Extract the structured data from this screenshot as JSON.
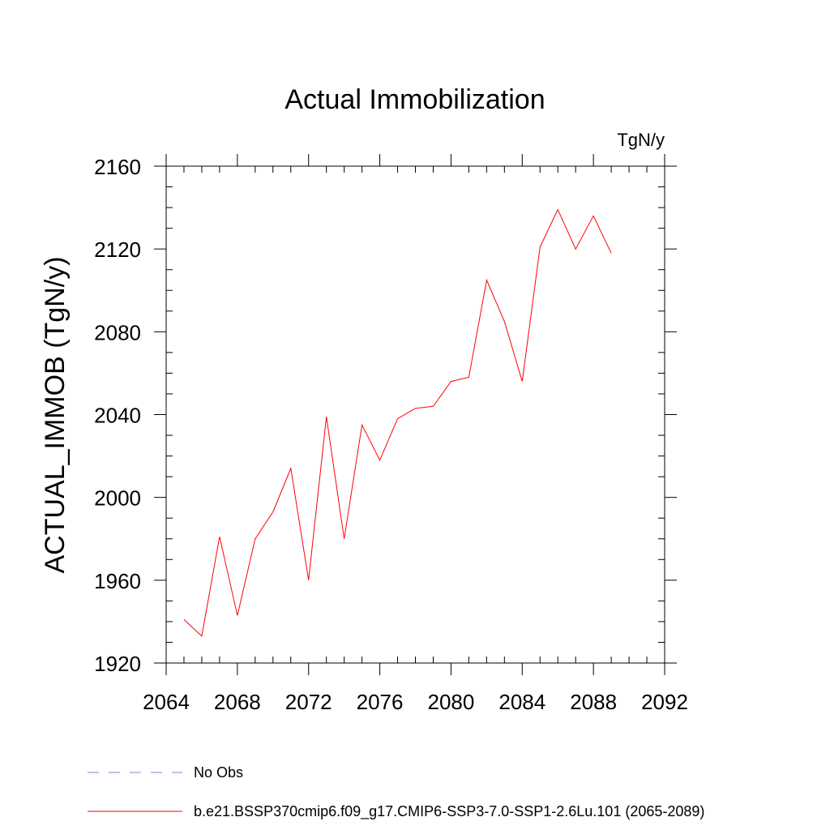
{
  "chart_data": {
    "type": "line",
    "title": "Actual Immobilization",
    "units_label": "TgN/y",
    "xlabel": "",
    "ylabel": "ACTUAL_IMMOB  (TgN/y)",
    "xlim": [
      2064,
      2092
    ],
    "ylim": [
      1920,
      2160
    ],
    "x_ticks": [
      2064,
      2068,
      2072,
      2076,
      2080,
      2084,
      2088,
      2092
    ],
    "y_ticks": [
      1920,
      1960,
      2000,
      2040,
      2080,
      2120,
      2160
    ],
    "x_tick_labels": [
      "2064",
      "2068",
      "2072",
      "2076",
      "2080",
      "2084",
      "2088",
      "2092"
    ],
    "y_tick_labels": [
      "1920",
      "1960",
      "2000",
      "2040",
      "2080",
      "2120",
      "2160"
    ],
    "x_minor_step": 1,
    "y_minor_step": 10,
    "grid": false,
    "series": [
      {
        "name": "b.e21.BSSP370cmip6.f09_g17.CMIP6-SSP3-7.0-SSP1-2.6Lu.101 (2065-2089)",
        "color": "#ff0000",
        "x": [
          2065,
          2066,
          2067,
          2068,
          2069,
          2070,
          2071,
          2072,
          2073,
          2074,
          2075,
          2076,
          2077,
          2078,
          2079,
          2080,
          2081,
          2082,
          2083,
          2084,
          2085,
          2086,
          2087,
          2088,
          2089
        ],
        "y": [
          1941,
          1933,
          1981,
          1943,
          1980,
          1993,
          2014,
          1960,
          2039,
          1980,
          2035,
          2018,
          2038,
          2043,
          2044,
          2056,
          2058,
          2105,
          2085,
          2056,
          2121,
          2139,
          2120,
          2136,
          2118
        ]
      }
    ],
    "legend": {
      "placement": "bottom-left",
      "entries": [
        {
          "label": "No Obs",
          "style": "dashed",
          "color": "#8a7fd0"
        },
        {
          "label": "b.e21.BSSP370cmip6.f09_g17.CMIP6-SSP3-7.0-SSP1-2.6Lu.101 (2065-2089)",
          "style": "solid",
          "color": "#ff0000"
        }
      ]
    }
  }
}
